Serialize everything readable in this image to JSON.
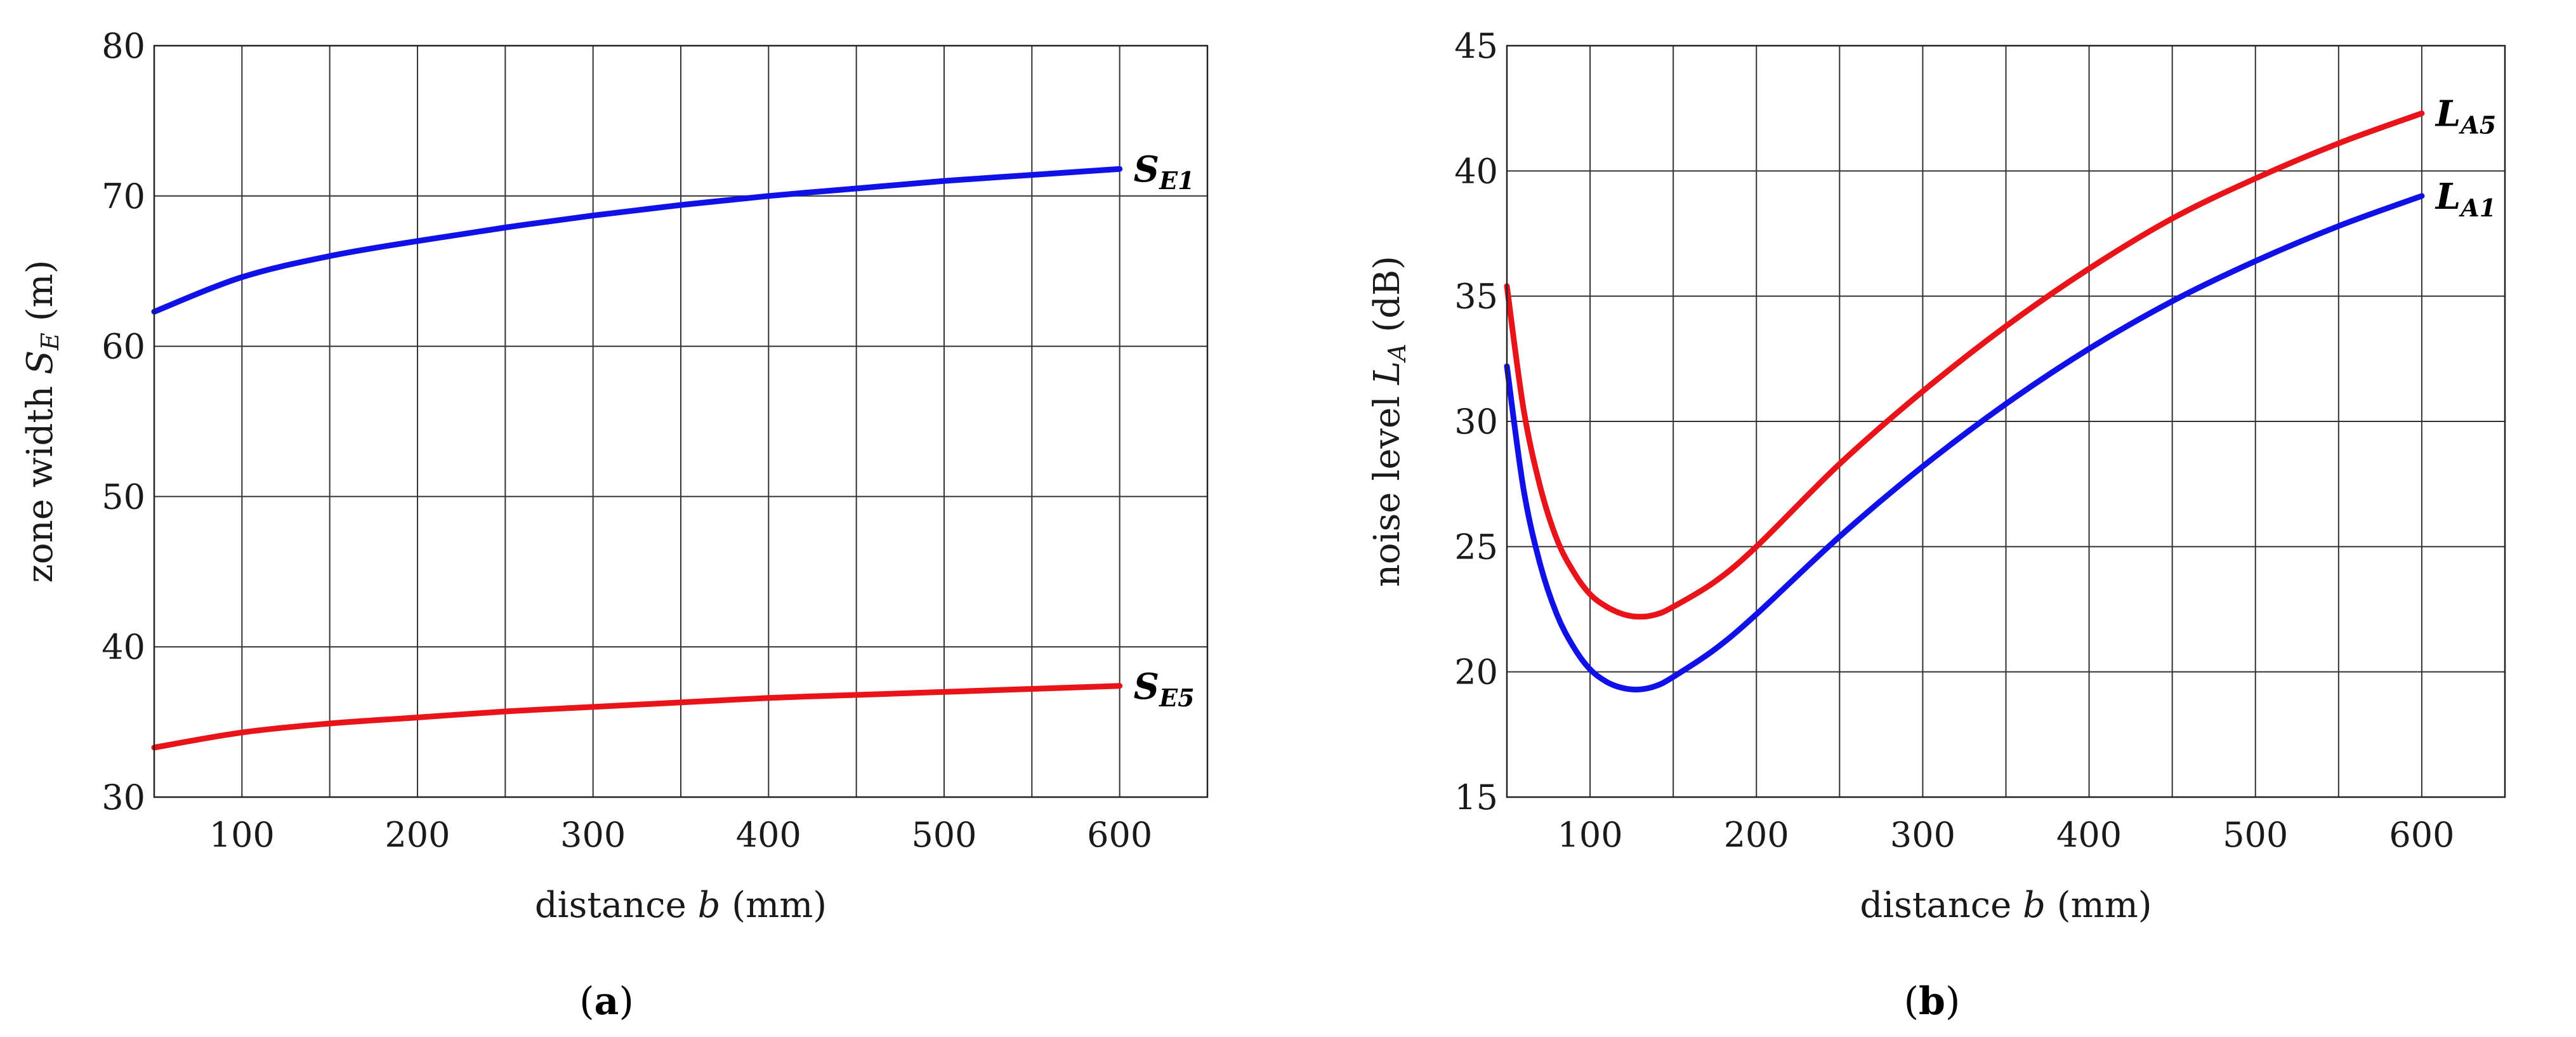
{
  "colors": {
    "blue": "#1010e8",
    "red": "#e8141a"
  },
  "chart_data": [
    {
      "type": "line",
      "caption_letter": "a",
      "xlabel_prefix": "distance ",
      "xlabel_var": "b",
      "xlabel_suffix": " (mm)",
      "ylabel_prefix": "zone width ",
      "ylabel_var": "S",
      "ylabel_sub": "E",
      "ylabel_suffix": " (m)",
      "xlim": [
        50,
        650
      ],
      "ylim": [
        30,
        80
      ],
      "xtick_values": [
        100,
        200,
        300,
        400,
        500,
        600
      ],
      "xtick_labels": [
        "100",
        "200",
        "300",
        "400",
        "500",
        "600"
      ],
      "xgrid": [
        100,
        150,
        200,
        250,
        300,
        350,
        400,
        450,
        500,
        550,
        600
      ],
      "ytick_values": [
        30,
        40,
        50,
        60,
        70,
        80
      ],
      "ytick_labels": [
        "30",
        "40",
        "50",
        "60",
        "70",
        "80"
      ],
      "series": [
        {
          "name": "S_E1",
          "label_main": "S",
          "label_sub": "E1",
          "color": "blue",
          "x": [
            50,
            100,
            150,
            200,
            250,
            300,
            350,
            400,
            450,
            500,
            550,
            600
          ],
          "y": [
            62.3,
            64.6,
            66.0,
            67.0,
            67.9,
            68.7,
            69.4,
            70.0,
            70.5,
            71.0,
            71.4,
            71.8
          ]
        },
        {
          "name": "S_E5",
          "label_main": "S",
          "label_sub": "E5",
          "color": "red",
          "x": [
            50,
            100,
            150,
            200,
            250,
            300,
            350,
            400,
            450,
            500,
            550,
            600
          ],
          "y": [
            33.3,
            34.3,
            34.9,
            35.3,
            35.7,
            36.0,
            36.3,
            36.6,
            36.8,
            37.0,
            37.2,
            37.4
          ]
        }
      ]
    },
    {
      "type": "line",
      "caption_letter": "b",
      "xlabel_prefix": "distance ",
      "xlabel_var": "b",
      "xlabel_suffix": " (mm)",
      "ylabel_prefix": "noise level ",
      "ylabel_var": "L",
      "ylabel_sub": "A",
      "ylabel_suffix": " (dB)",
      "xlim": [
        50,
        650
      ],
      "ylim": [
        15,
        45
      ],
      "xtick_values": [
        100,
        200,
        300,
        400,
        500,
        600
      ],
      "xtick_labels": [
        "100",
        "200",
        "300",
        "400",
        "500",
        "600"
      ],
      "xgrid": [
        100,
        150,
        200,
        250,
        300,
        350,
        400,
        450,
        500,
        550,
        600
      ],
      "ytick_values": [
        15,
        20,
        25,
        30,
        35,
        40,
        45
      ],
      "ytick_labels": [
        "15",
        "20",
        "25",
        "30",
        "35",
        "40",
        "45"
      ],
      "series": [
        {
          "name": "L_A5",
          "label_main": "L",
          "label_sub": "A5",
          "color": "red",
          "x": [
            50,
            60,
            70,
            80,
            90,
            100,
            110,
            120,
            130,
            140,
            150,
            175,
            200,
            250,
            300,
            350,
            400,
            450,
            500,
            550,
            600
          ],
          "y": [
            35.4,
            30.5,
            27.4,
            25.3,
            24.0,
            23.1,
            22.6,
            22.3,
            22.2,
            22.3,
            22.6,
            23.6,
            25.0,
            28.3,
            31.2,
            33.8,
            36.1,
            38.1,
            39.7,
            41.1,
            42.3
          ]
        },
        {
          "name": "L_A1",
          "label_main": "L",
          "label_sub": "A1",
          "color": "blue",
          "x": [
            50,
            60,
            70,
            80,
            90,
            100,
            110,
            120,
            130,
            140,
            150,
            175,
            200,
            250,
            300,
            350,
            400,
            450,
            500,
            550,
            600
          ],
          "y": [
            32.2,
            27.3,
            24.3,
            22.3,
            21.0,
            20.1,
            19.6,
            19.35,
            19.3,
            19.45,
            19.8,
            20.9,
            22.3,
            25.4,
            28.2,
            30.7,
            32.9,
            34.8,
            36.4,
            37.8,
            39.0
          ]
        }
      ]
    }
  ]
}
